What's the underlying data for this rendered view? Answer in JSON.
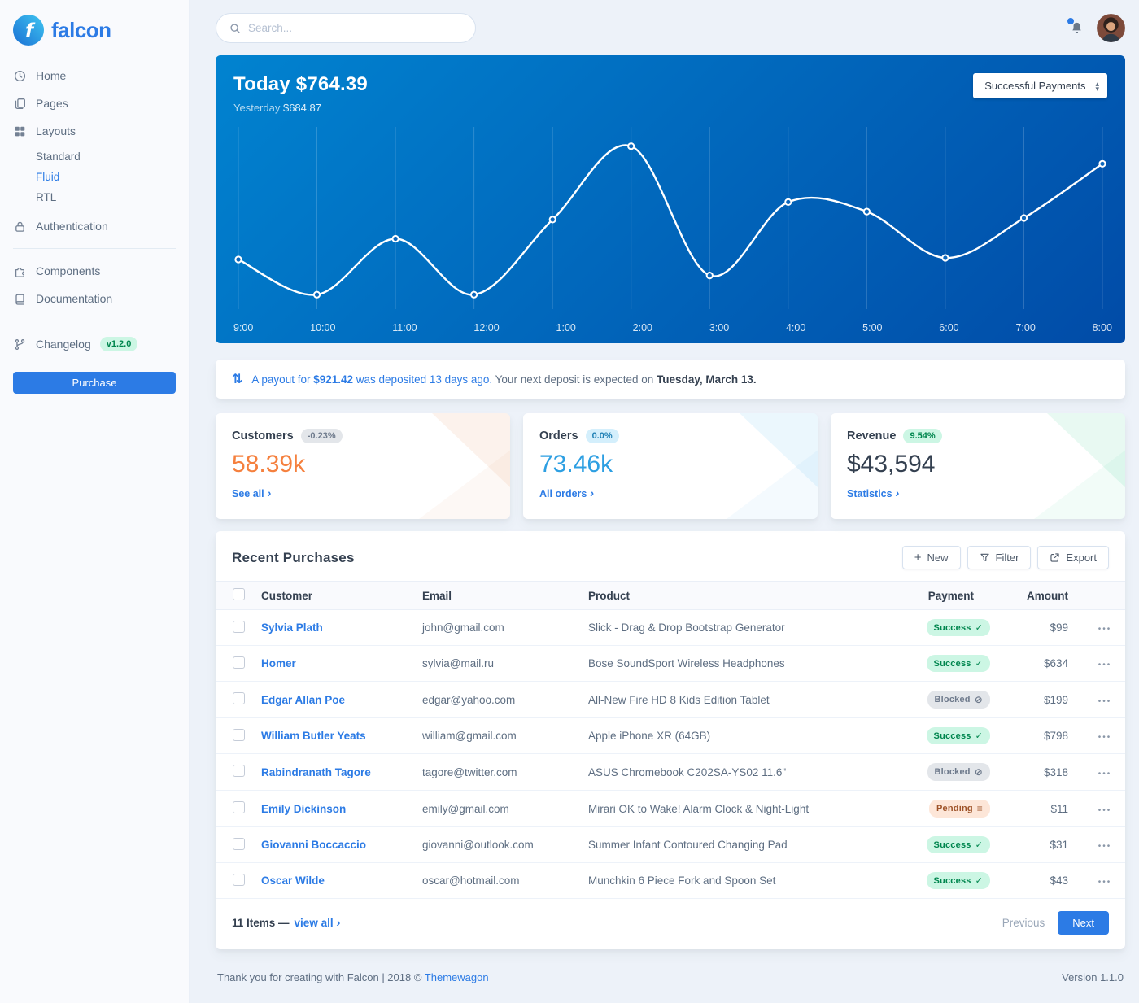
{
  "colors": {
    "primary": "#2c7be5",
    "success": "#00d27a",
    "warning": "#f5803e",
    "info": "#27bcfd",
    "background": "#edf2f9",
    "chart_gradient": [
      "#0183d0",
      "#014ba7"
    ]
  },
  "brand": {
    "name": "falcon",
    "logo_icon": "falcon-logo-icon"
  },
  "topbar": {
    "search_placeholder": "Search...",
    "search_icon": "search-icon",
    "bell_icon": "bell-icon",
    "avatar_icon": "user-avatar"
  },
  "sidebar": {
    "items": [
      {
        "label": "Home",
        "icon": "clock-icon"
      },
      {
        "label": "Pages",
        "icon": "pages-icon"
      },
      {
        "label": "Layouts",
        "icon": "grid-icon"
      },
      {
        "label": "Authentication",
        "icon": "lock-icon"
      },
      {
        "label": "Components",
        "icon": "puzzle-icon"
      },
      {
        "label": "Documentation",
        "icon": "book-icon"
      },
      {
        "label": "Changelog",
        "icon": "code-branch-icon",
        "badge": "v1.2.0"
      }
    ],
    "layouts_children": [
      {
        "label": "Standard",
        "active": false
      },
      {
        "label": "Fluid",
        "active": true
      },
      {
        "label": "RTL",
        "active": false
      }
    ],
    "purchase_label": "Purchase"
  },
  "revenue_card": {
    "title_today_label": "Today",
    "title_today_value": "$764.39",
    "subtitle_label": "Yesterday",
    "subtitle_value": "$684.87",
    "select_value": "Successful Payments",
    "select_icon": "sort-icon"
  },
  "chart_data": {
    "type": "line",
    "title": "Successful Payments (hourly)",
    "x": [
      "9:00",
      "10:00",
      "11:00",
      "12:00",
      "1:00",
      "2:00",
      "3:00",
      "4:00",
      "5:00",
      "6:00",
      "7:00",
      "8:00"
    ],
    "values": [
      26,
      4,
      39,
      4,
      51,
      97,
      16,
      62,
      56,
      27,
      52,
      86
    ],
    "ylim": [
      0,
      105
    ],
    "line_color": "#ffffff",
    "point_fill": "#0c67bc",
    "grid": "vertical-only",
    "grid_color": "rgba(255,255,255,0.18)",
    "legend": "none"
  },
  "payout_notice": {
    "icon": "exchange-arrows-icon",
    "link_pre": "A payout for ",
    "amount": "$921.42",
    "link_post": " was deposited 13 days ago.",
    "plain_text": " Your next deposit is expected on ",
    "date": "Tuesday, March 13."
  },
  "stats": {
    "cards": [
      {
        "title": "Customers",
        "badge": "-0.23%",
        "badge_type": "secondary",
        "value": "58.39k",
        "link": "See all",
        "link_icon": "chevron-right-icon"
      },
      {
        "title": "Orders",
        "badge": "0.0%",
        "badge_type": "info",
        "value": "73.46k",
        "link": "All orders",
        "link_icon": "chevron-right-icon"
      },
      {
        "title": "Revenue",
        "badge": "9.54%",
        "badge_type": "success",
        "value": "$43,594",
        "link": "Statistics",
        "link_icon": "chevron-right-icon"
      }
    ]
  },
  "purchases": {
    "title": "Recent Purchases",
    "buttons": [
      {
        "label": "New",
        "icon": "plus-icon"
      },
      {
        "label": "Filter",
        "icon": "filter-icon"
      },
      {
        "label": "Export",
        "icon": "export-icon"
      }
    ],
    "columns": {
      "customer": "Customer",
      "email": "Email",
      "product": "Product",
      "payment": "Payment",
      "amount": "Amount"
    },
    "rows": [
      {
        "customer": "Sylvia Plath",
        "email": "john@gmail.com",
        "product": "Slick - Drag & Drop Bootstrap Generator",
        "payment": {
          "label": "Success",
          "type": "success",
          "icon": "check-icon"
        },
        "amount": "$99"
      },
      {
        "customer": "Homer",
        "email": "sylvia@mail.ru",
        "product": "Bose SoundSport Wireless Headphones",
        "payment": {
          "label": "Success",
          "type": "success",
          "icon": "check-icon"
        },
        "amount": "$634"
      },
      {
        "customer": "Edgar Allan Poe",
        "email": "edgar@yahoo.com",
        "product": "All-New Fire HD 8 Kids Edition Tablet",
        "payment": {
          "label": "Blocked",
          "type": "blocked",
          "icon": "ban-icon"
        },
        "amount": "$199"
      },
      {
        "customer": "William Butler Yeats",
        "email": "william@gmail.com",
        "product": "Apple iPhone XR (64GB)",
        "payment": {
          "label": "Success",
          "type": "success",
          "icon": "check-icon"
        },
        "amount": "$798"
      },
      {
        "customer": "Rabindranath Tagore",
        "email": "tagore@twitter.com",
        "product": "ASUS Chromebook C202SA-YS02 11.6\"",
        "payment": {
          "label": "Blocked",
          "type": "blocked",
          "icon": "ban-icon"
        },
        "amount": "$318"
      },
      {
        "customer": "Emily Dickinson",
        "email": "emily@gmail.com",
        "product": "Mirari OK to Wake! Alarm Clock & Night-Light",
        "payment": {
          "label": "Pending",
          "type": "pending",
          "icon": "stream-icon"
        },
        "amount": "$11"
      },
      {
        "customer": "Giovanni Boccaccio",
        "email": "giovanni@outlook.com",
        "product": "Summer Infant Contoured Changing Pad",
        "payment": {
          "label": "Success",
          "type": "success",
          "icon": "check-icon"
        },
        "amount": "$31"
      },
      {
        "customer": "Oscar Wilde",
        "email": "oscar@hotmail.com",
        "product": "Munchkin 6 Piece Fork and Spoon Set",
        "payment": {
          "label": "Success",
          "type": "success",
          "icon": "check-icon"
        },
        "amount": "$43"
      }
    ],
    "footer": {
      "items_text": "11 Items —",
      "view_all": "view all",
      "previous": "Previous",
      "next": "Next"
    }
  },
  "page_footer": {
    "left_pre": "Thank you for creating with Falcon | 2018 © ",
    "link": "Themewagon",
    "version": "Version 1.1.0"
  }
}
